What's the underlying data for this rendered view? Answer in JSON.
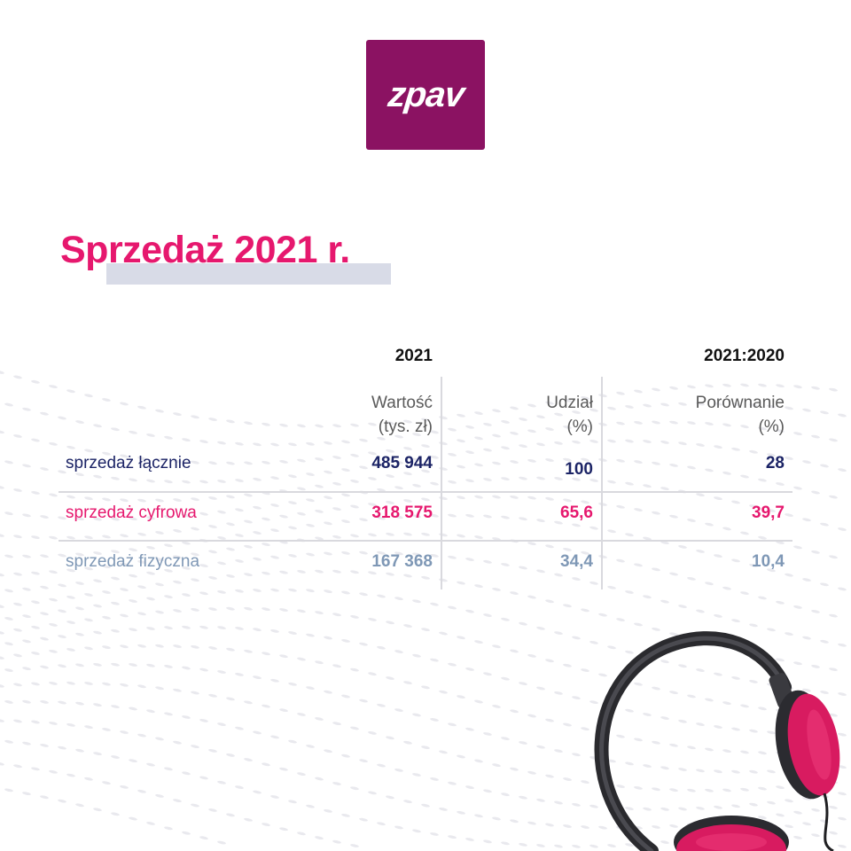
{
  "logo": {
    "text": "zpav"
  },
  "title": "Sprzedaż 2021 r.",
  "table": {
    "group_headers": {
      "year": "2021",
      "comparison": "2021:2020"
    },
    "columns": [
      {
        "line1": "Wartość",
        "line2": "(tys. zł)"
      },
      {
        "line1": "Udział",
        "line2": "(%)"
      },
      {
        "line1": "Porównanie",
        "line2": "(%)"
      }
    ],
    "rows": [
      {
        "label": "sprzedaż łącznie",
        "value": "485 944",
        "share": "100",
        "comparison": "28",
        "color": "#1c2466"
      },
      {
        "label": "sprzedaż cyfrowa",
        "value": "318 575",
        "share": "65,6",
        "comparison": "39,7",
        "color": "#e6186e"
      },
      {
        "label": "sprzedaż fizyczna",
        "value": "167 368",
        "share": "34,4",
        "comparison": "10,4",
        "color": "#7f98b6"
      }
    ]
  },
  "colors": {
    "brand_purple": "#8b1262",
    "accent_pink": "#e6186e",
    "navy": "#1c2466",
    "slate_blue": "#7f98b6",
    "highlight": "#d8dbe7"
  },
  "decor": {
    "image": "headphones-image",
    "background": "dotted-wave-pattern"
  }
}
